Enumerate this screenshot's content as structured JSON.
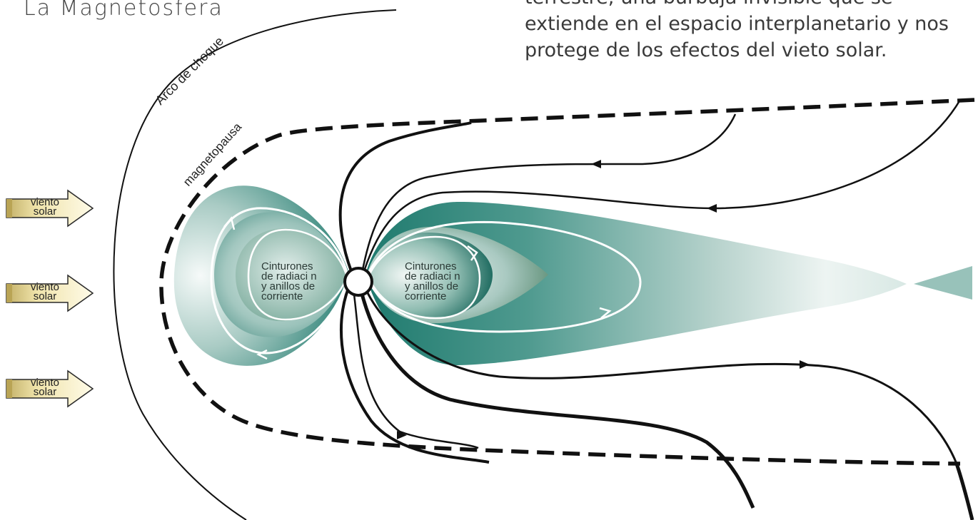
{
  "title": "La Magnetosfera",
  "description_lines": [
    "terrestre; una burbuja invisible que se",
    "extiende en el espacio interplanetario y nos",
    "protege de los efectos del vieto solar."
  ],
  "labels": {
    "bow_shock": "Arco de choque",
    "magnetopause": "magnetopausa",
    "belts_left": [
      "Cinturones",
      "de radiaci  n",
      "y anillos de",
      "corriente"
    ],
    "belts_right": [
      "Cinturones",
      "de radiaci  n",
      "y anillos de",
      "corriente"
    ]
  },
  "solar_wind": [
    {
      "line1": "viento",
      "line2": "solar"
    },
    {
      "line1": "viento",
      "line2": "solar"
    },
    {
      "line1": "viento",
      "line2": "solar"
    }
  ],
  "colors": {
    "teal_dark": "#1f7a6e",
    "teal_mid": "#7fb3aa",
    "teal_light": "#e9f2ef",
    "wind_fill_light": "#fbf6d8",
    "wind_fill_dark": "#c7b56a",
    "line": "#111111"
  }
}
